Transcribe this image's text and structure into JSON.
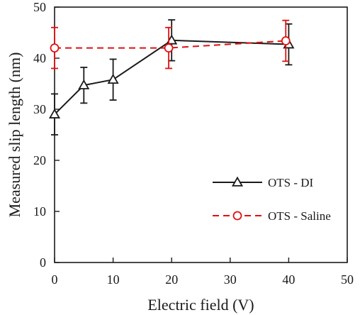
{
  "chart_data": {
    "type": "line",
    "xlabel": "Electric field (V)",
    "ylabel": "Measured slip length (nm)",
    "xlim": [
      0,
      50
    ],
    "ylim": [
      0,
      50
    ],
    "x_ticks": [
      0,
      10,
      20,
      30,
      40,
      50
    ],
    "y_ticks": [
      0,
      10,
      20,
      30,
      40,
      50
    ],
    "grid": false,
    "legend_position": "lower-right",
    "series": [
      {
        "name": "OTS - DI",
        "color": "#1a1a1a",
        "marker": "triangle-open",
        "line_style": "solid",
        "x": [
          0,
          5,
          10,
          20,
          40
        ],
        "y": [
          29,
          34.7,
          35.8,
          43.5,
          42.7
        ],
        "y_err": [
          4,
          3.5,
          4,
          4,
          4
        ]
      },
      {
        "name": "OTS - Saline",
        "color": "#e01010",
        "marker": "circle-open",
        "line_style": "dashed",
        "x": [
          0,
          19.5,
          39.5
        ],
        "y": [
          42,
          42,
          43.4
        ],
        "y_err": [
          4,
          4,
          4
        ]
      }
    ]
  }
}
